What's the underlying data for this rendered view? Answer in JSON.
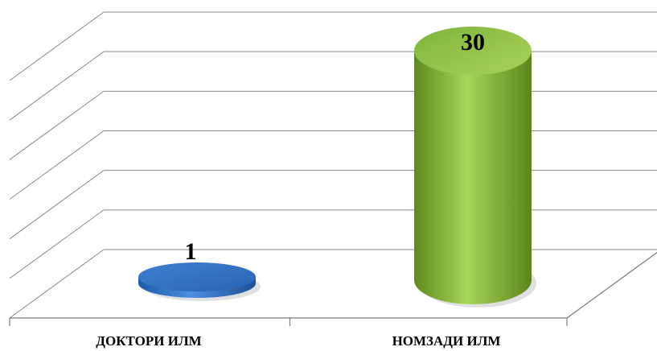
{
  "chart_data": {
    "type": "bar",
    "style": "3d-cylinder",
    "categories": [
      "ДОКТОРИ ИЛМ",
      "НОМЗАДИ ИЛМ"
    ],
    "values": [
      1,
      30
    ],
    "data_labels": [
      "1",
      "30"
    ],
    "colors": [
      "#3d7fd1",
      "#8dc63f"
    ],
    "ylim": [
      0,
      30
    ],
    "grid": true,
    "legend": "none"
  }
}
